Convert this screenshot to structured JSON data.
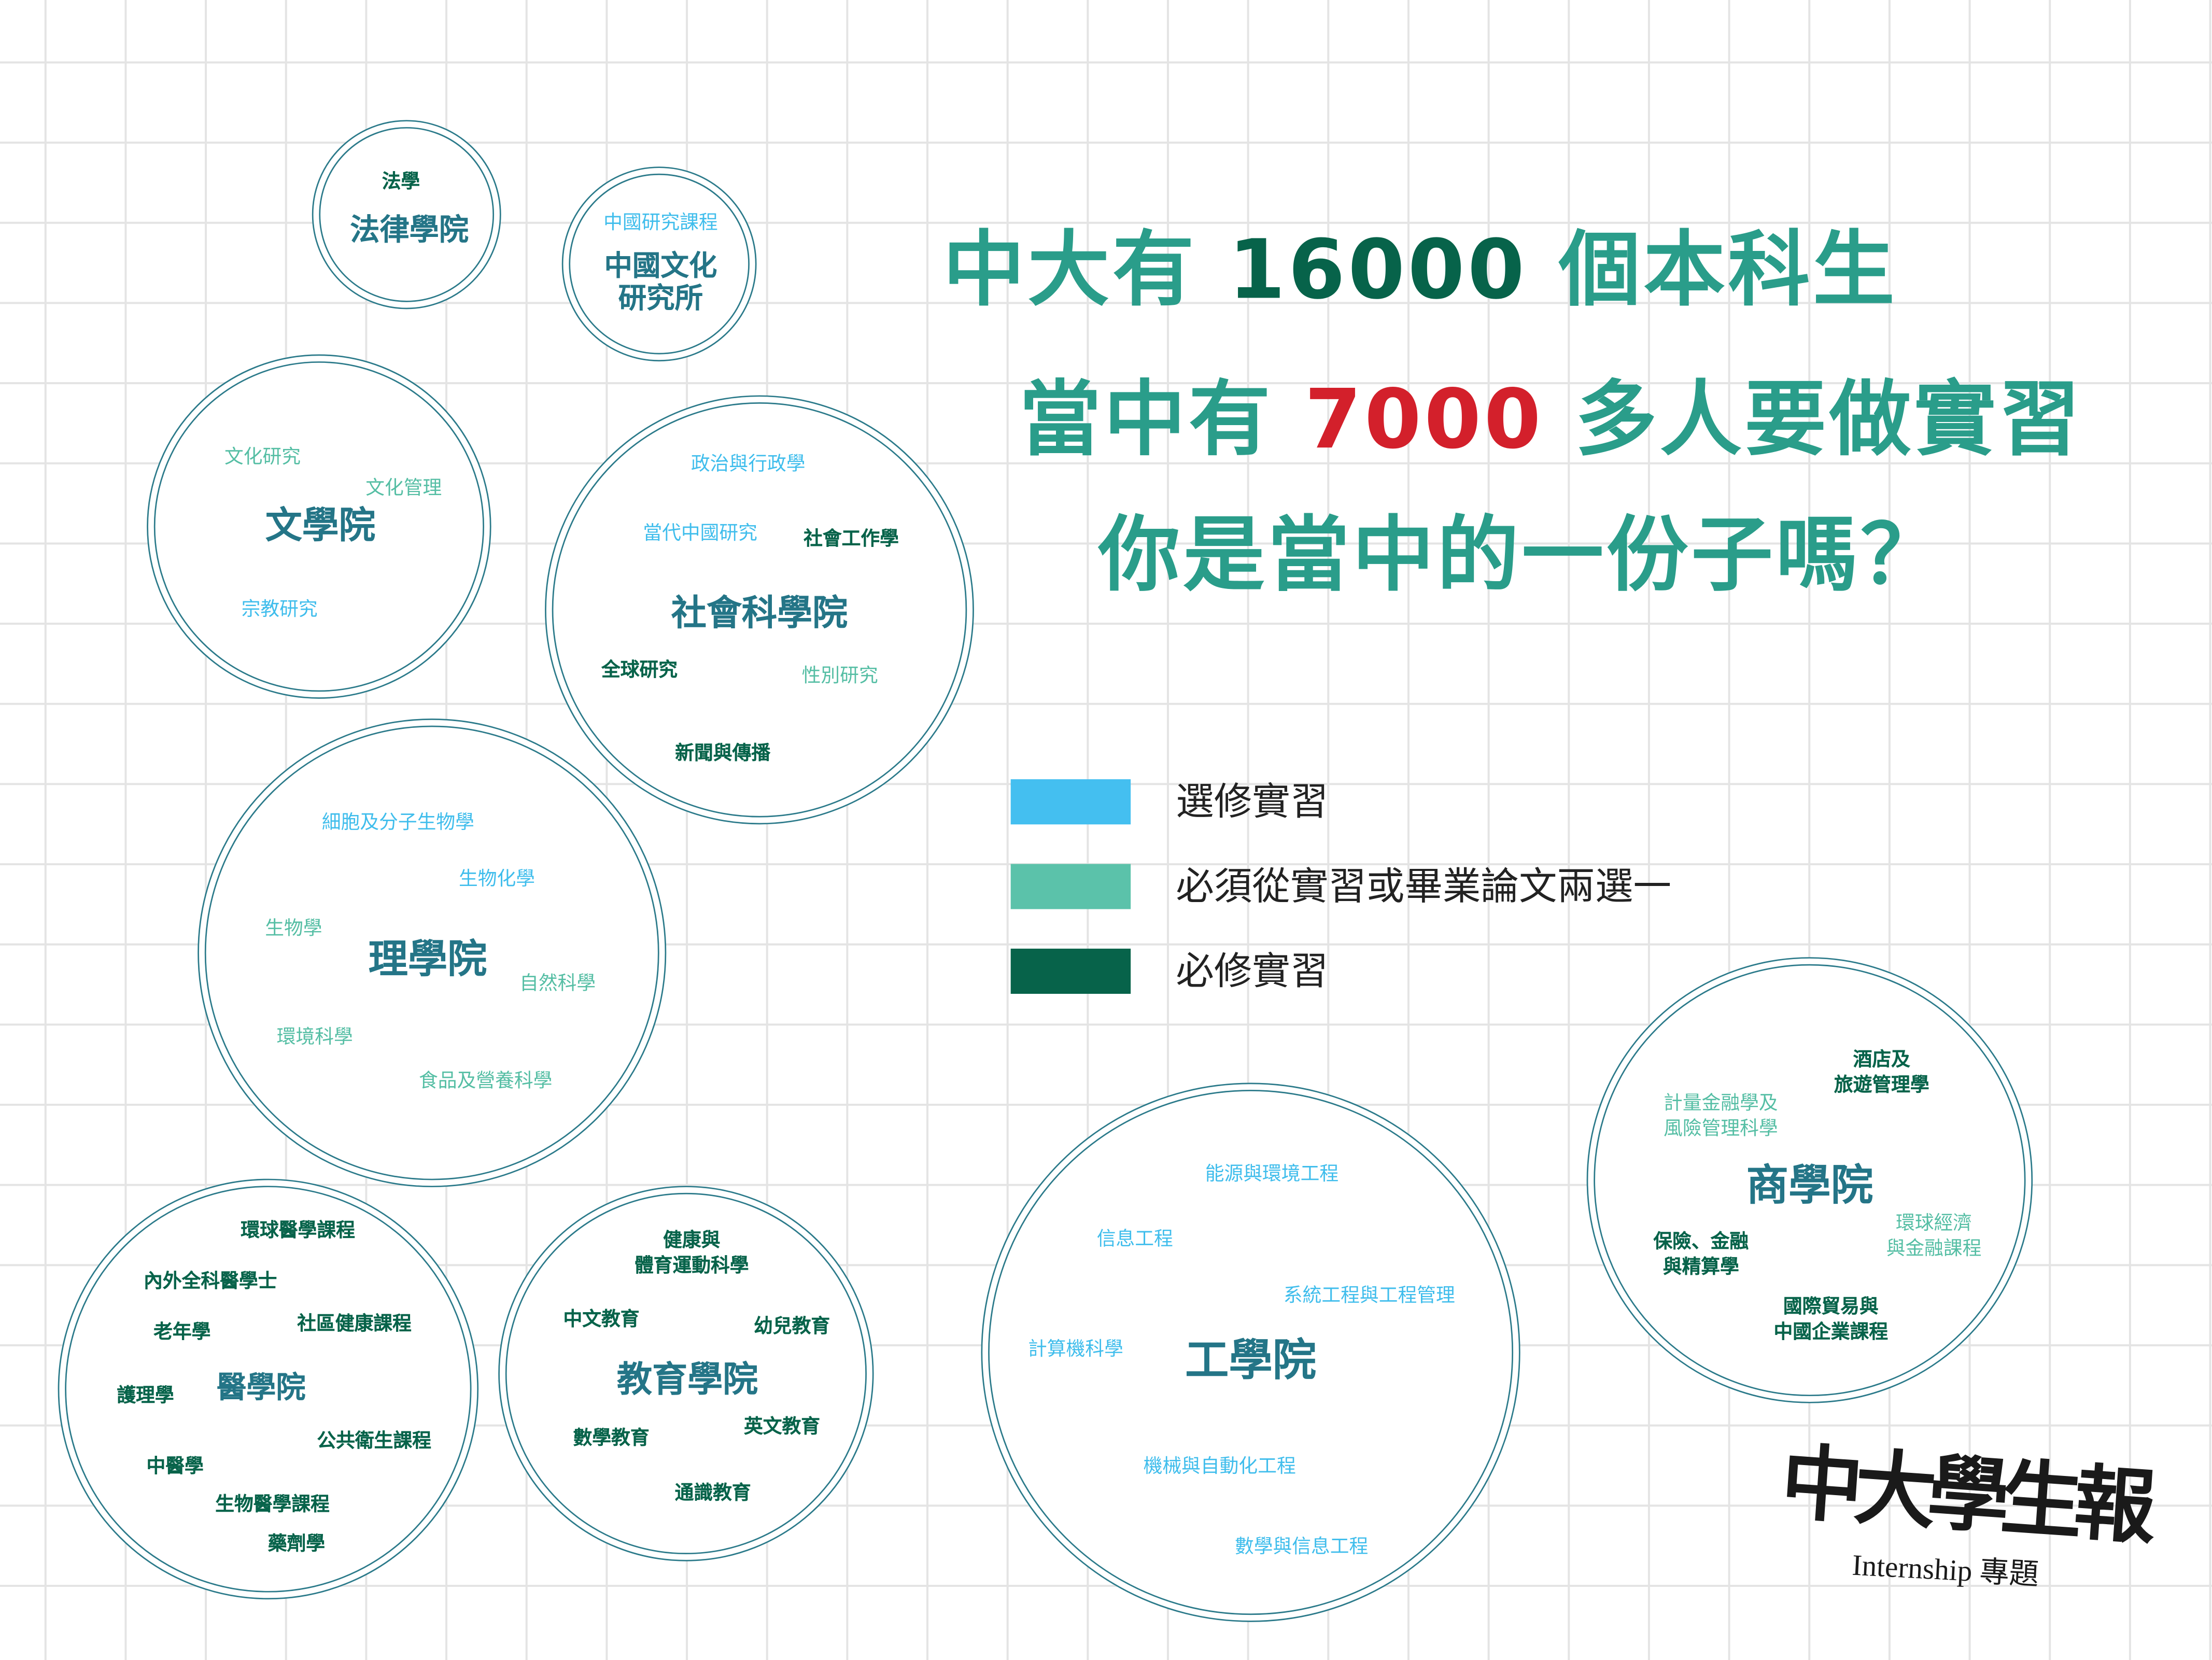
{
  "headline": {
    "line1_pre": "中大有 ",
    "line1_num": "16000",
    "line1_post": " 個本科生",
    "line2_pre": "當中有 ",
    "line2_num": "7000",
    "line2_post": " 多人要做實習",
    "line3": "你是當中的一份子嗎？"
  },
  "colors": {
    "elective": "#3fbdec",
    "either": "#55bea4",
    "mandatory": "#07634a",
    "faculty_title": "#247587",
    "headline": "#2a9d8a",
    "highlight_red": "#d3202b"
  },
  "legend": [
    {
      "key": "elective",
      "label": "選修實習",
      "color": "#44bff0"
    },
    {
      "key": "either",
      "label": "必須從實習或畢業論文兩選一",
      "color": "#5bc2aa"
    },
    {
      "key": "mandatory",
      "label": "必修實習",
      "color": "#07634a"
    }
  ],
  "faculties": [
    {
      "title": "法律學院",
      "departments": [
        {
          "name": "法學",
          "category": "mandatory"
        }
      ]
    },
    {
      "title": "中國文化\n研究所",
      "departments": [
        {
          "name": "中國研究課程",
          "category": "elective"
        }
      ]
    },
    {
      "title": "文學院",
      "departments": [
        {
          "name": "文化研究",
          "category": "either"
        },
        {
          "name": "文化管理",
          "category": "either"
        },
        {
          "name": "宗教研究",
          "category": "elective"
        }
      ]
    },
    {
      "title": "社會科學院",
      "departments": [
        {
          "name": "政治與行政學",
          "category": "elective"
        },
        {
          "name": "當代中國研究",
          "category": "elective"
        },
        {
          "name": "社會工作學",
          "category": "mandatory"
        },
        {
          "name": "全球研究",
          "category": "mandatory"
        },
        {
          "name": "性別研究",
          "category": "either"
        },
        {
          "name": "新聞與傳播",
          "category": "mandatory"
        }
      ]
    },
    {
      "title": "理學院",
      "departments": [
        {
          "name": "細胞及分子生物學",
          "category": "elective"
        },
        {
          "name": "生物化學",
          "category": "elective"
        },
        {
          "name": "生物學",
          "category": "either"
        },
        {
          "name": "自然科學",
          "category": "either"
        },
        {
          "name": "環境科學",
          "category": "either"
        },
        {
          "name": "食品及營養科學",
          "category": "either"
        }
      ]
    },
    {
      "title": "醫學院",
      "departments": [
        {
          "name": "環球醫學課程",
          "category": "mandatory"
        },
        {
          "name": "內外全科醫學士",
          "category": "mandatory"
        },
        {
          "name": "老年學",
          "category": "mandatory"
        },
        {
          "name": "社區健康課程",
          "category": "mandatory"
        },
        {
          "name": "護理學",
          "category": "mandatory"
        },
        {
          "name": "公共衛生課程",
          "category": "mandatory"
        },
        {
          "name": "中醫學",
          "category": "mandatory"
        },
        {
          "name": "生物醫學課程",
          "category": "mandatory"
        },
        {
          "name": "藥劑學",
          "category": "mandatory"
        }
      ]
    },
    {
      "title": "教育學院",
      "departments": [
        {
          "name": "健康與\n體育運動科學",
          "category": "mandatory"
        },
        {
          "name": "中文教育",
          "category": "mandatory"
        },
        {
          "name": "幼兒教育",
          "category": "mandatory"
        },
        {
          "name": "數學教育",
          "category": "mandatory"
        },
        {
          "name": "英文教育",
          "category": "mandatory"
        },
        {
          "name": "通識教育",
          "category": "mandatory"
        }
      ]
    },
    {
      "title": "工學院",
      "departments": [
        {
          "name": "能源與環境工程",
          "category": "elective"
        },
        {
          "name": "信息工程",
          "category": "elective"
        },
        {
          "name": "系統工程與工程管理",
          "category": "elective"
        },
        {
          "name": "計算機科學",
          "category": "elective"
        },
        {
          "name": "機械與自動化工程",
          "category": "elective"
        },
        {
          "name": "數學與信息工程",
          "category": "elective"
        }
      ]
    },
    {
      "title": "商學院",
      "departments": [
        {
          "name": "酒店及\n旅遊管理學",
          "category": "mandatory"
        },
        {
          "name": "計量金融學及\n風險管理科學",
          "category": "either"
        },
        {
          "name": "環球經濟\n與金融課程",
          "category": "either"
        },
        {
          "name": "保險、金融\n與精算學",
          "category": "mandatory"
        },
        {
          "name": "國際貿易與\n中國企業課程",
          "category": "mandatory"
        }
      ]
    }
  ],
  "logo": {
    "name": "中大學生報",
    "subtitle": "Internship 專題"
  }
}
